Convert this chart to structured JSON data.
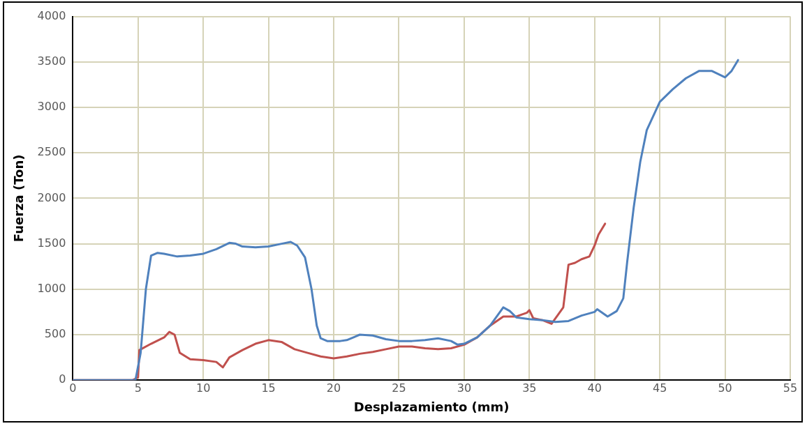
{
  "chart_data": {
    "type": "line",
    "xlabel": "Desplazamiento (mm)",
    "ylabel": "Fuerza (Ton)",
    "xlim": [
      0,
      55
    ],
    "xticks": [
      0,
      5,
      10,
      15,
      20,
      25,
      30,
      35,
      40,
      45,
      50,
      55
    ],
    "ylim": [
      0,
      4000
    ],
    "yticks": [
      0,
      500,
      1000,
      1500,
      2000,
      2500,
      3000,
      3500,
      4000
    ],
    "grid": true,
    "legend": false,
    "marker": "none",
    "line_style": "solid",
    "series": [
      {
        "color": "#4f81bd",
        "x": [
          0,
          4.8,
          5.2,
          5.6,
          6,
          6.5,
          7,
          8,
          9,
          10,
          11,
          12,
          12.5,
          13,
          14,
          15,
          16,
          16.7,
          17.2,
          17.8,
          18.3,
          18.7,
          19,
          19.5,
          20.5,
          21,
          22,
          23,
          24,
          25,
          26,
          27,
          28,
          29,
          29.5,
          30,
          31,
          32,
          33,
          33.5,
          34,
          35,
          36,
          37,
          38,
          39,
          40,
          40.2,
          41,
          41.7,
          42.2,
          42.5,
          43,
          43.5,
          44,
          45,
          46,
          47,
          48,
          49,
          50,
          50.5,
          51
        ],
        "values": [
          0,
          0,
          300,
          1000,
          1370,
          1400,
          1390,
          1360,
          1370,
          1390,
          1440,
          1510,
          1500,
          1470,
          1460,
          1470,
          1500,
          1520,
          1480,
          1350,
          1000,
          600,
          460,
          430,
          430,
          440,
          500,
          490,
          450,
          430,
          430,
          440,
          460,
          430,
          390,
          400,
          470,
          600,
          800,
          760,
          690,
          670,
          660,
          640,
          650,
          710,
          750,
          780,
          700,
          760,
          900,
          1300,
          1900,
          2400,
          2750,
          3060,
          3200,
          3320,
          3400,
          3400,
          3330,
          3400,
          3520
        ]
      },
      {
        "color": "#c0504d",
        "x": [
          0,
          4.6,
          5,
          5.1,
          6,
          7,
          7.4,
          7.8,
          8.2,
          9,
          10,
          11,
          11.5,
          12,
          13,
          14,
          15,
          16,
          17,
          18,
          19,
          20,
          21,
          22,
          23,
          24,
          25,
          26,
          27,
          28,
          29,
          30,
          31,
          32,
          33,
          34,
          34.8,
          35,
          35.3,
          36,
          36.7,
          37.2,
          37.6,
          38,
          38.5,
          39,
          39.6,
          40,
          40.3,
          40.8
        ],
        "values": [
          0,
          0,
          30,
          330,
          400,
          470,
          530,
          500,
          300,
          230,
          220,
          200,
          140,
          250,
          330,
          400,
          440,
          420,
          340,
          300,
          260,
          240,
          260,
          290,
          310,
          340,
          370,
          370,
          350,
          340,
          350,
          390,
          470,
          600,
          700,
          700,
          740,
          770,
          680,
          660,
          620,
          720,
          800,
          1270,
          1290,
          1330,
          1360,
          1480,
          1600,
          1720
        ]
      }
    ]
  }
}
